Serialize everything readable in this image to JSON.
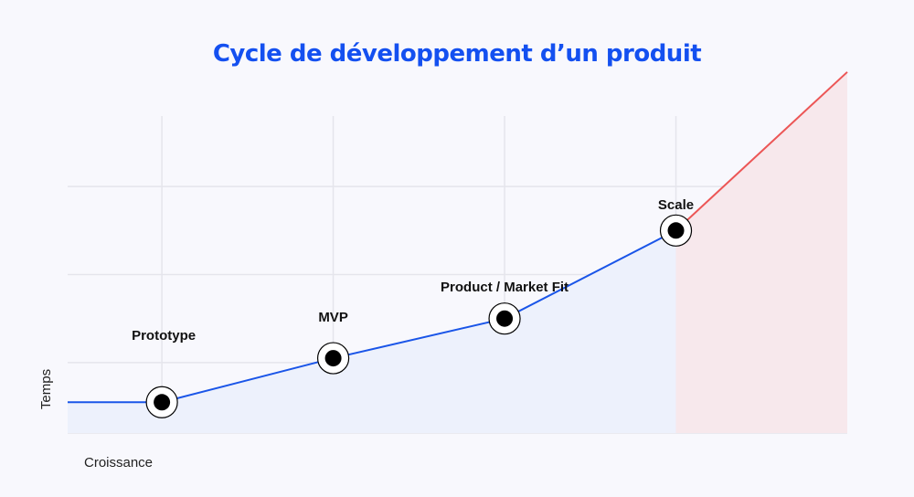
{
  "chart_data": {
    "type": "line",
    "title": "Cycle de développement d’un produit",
    "xlabel": "Croissance",
    "ylabel": "Temps",
    "x": [
      0,
      1,
      2,
      3,
      4
    ],
    "series": [
      {
        "values": [
          0.05,
          0.55,
          1.0,
          2.0,
          3.8
        ]
      }
    ],
    "annotations": [
      {
        "x": 0,
        "text": "Prototype"
      },
      {
        "x": 1,
        "text": "MVP"
      },
      {
        "x": 2,
        "text": "Product / Market Fit"
      },
      {
        "x": 3,
        "text": "Scale"
      }
    ],
    "xlim": [
      -0.55,
      4
    ],
    "ylim": [
      -0.3,
      3.3
    ],
    "grid": true,
    "colors": {
      "title": "#1450f0",
      "line": "#1a55e8",
      "area": "#edf1fc",
      "scale_line": "#ec5656",
      "scale_area": "#f7e8ec",
      "grid": "#e5e5ec",
      "marker": "#000000"
    }
  }
}
